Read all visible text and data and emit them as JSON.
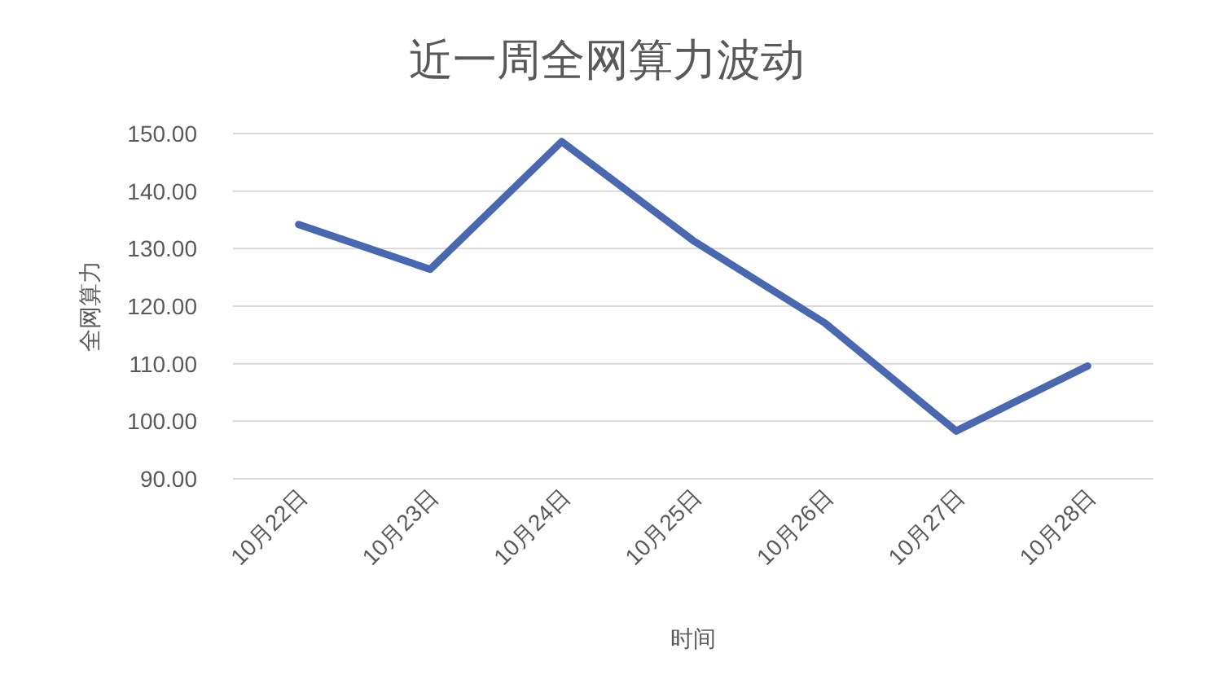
{
  "chart_data": {
    "type": "line",
    "title": "近一周全网算力波动",
    "xlabel": "时间",
    "ylabel": "全网算力",
    "categories": [
      "10月22日",
      "10月23日",
      "10月24日",
      "10月25日",
      "10月26日",
      "10月27日",
      "10月28日"
    ],
    "series": [
      {
        "color": "#4a68b0",
        "values": [
          134.2,
          126.4,
          148.6,
          131.4,
          117.1,
          98.3,
          109.6
        ]
      }
    ],
    "ylim": [
      90,
      150
    ],
    "yticks": [
      {
        "value": 90,
        "label": "90.00"
      },
      {
        "value": 100,
        "label": "100.00"
      },
      {
        "value": 110,
        "label": "110.00"
      },
      {
        "value": 120,
        "label": "120.00"
      },
      {
        "value": 130,
        "label": "130.00"
      },
      {
        "value": 140,
        "label": "140.00"
      },
      {
        "value": 150,
        "label": "150.00"
      }
    ],
    "grid": "y",
    "line_style": "solid"
  }
}
